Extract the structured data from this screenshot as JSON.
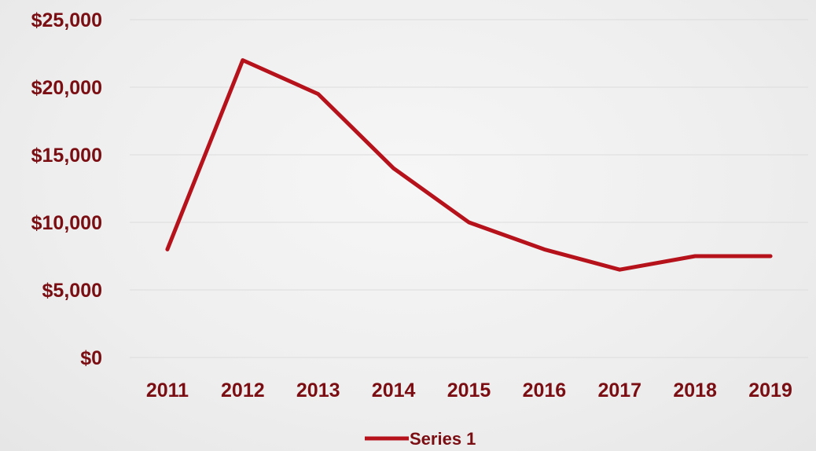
{
  "chart_data": {
    "type": "line",
    "x": [
      "2011",
      "2012",
      "2013",
      "2014",
      "2015",
      "2016",
      "2017",
      "2018",
      "2019"
    ],
    "series": [
      {
        "name": "Series 1",
        "values": [
          8000,
          22000,
          19500,
          14000,
          10000,
          8000,
          6500,
          7500,
          7500
        ],
        "color": "#b5121b"
      }
    ],
    "y_ticks": [
      "$0",
      "$5,000",
      "$10,000",
      "$15,000",
      "$20,000",
      "$25,000"
    ],
    "ylim": [
      0,
      25000
    ],
    "grid": true,
    "legend": "bottom"
  }
}
